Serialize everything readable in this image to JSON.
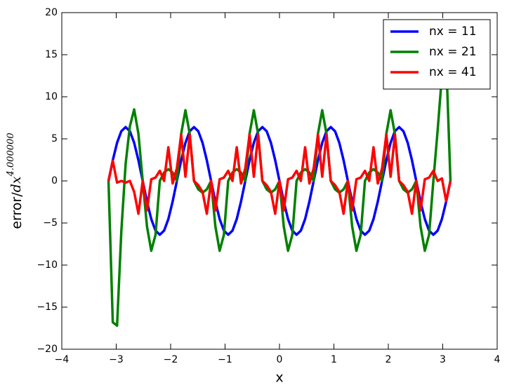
{
  "chart_data": {
    "type": "line",
    "xlabel": "x",
    "ylabel": "error/",
    "ylabel_var": "dx",
    "ylabel_exponent": "4.000000",
    "x": [
      -3.1416,
      -3.0631,
      -2.9845,
      -2.906,
      -2.8274,
      -2.7489,
      -2.6704,
      -2.5918,
      -2.5133,
      -2.4347,
      -2.3562,
      -2.2777,
      -2.1991,
      -2.1206,
      -2.042,
      -1.9635,
      -1.885,
      -1.8064,
      -1.7279,
      -1.6493,
      -1.5708,
      -1.4923,
      -1.4137,
      -1.3352,
      -1.2566,
      -1.1781,
      -1.0996,
      -1.021,
      -0.9425,
      -0.8639,
      -0.7854,
      -0.7069,
      -0.6283,
      -0.5498,
      -0.4712,
      -0.3927,
      -0.3142,
      -0.2356,
      -0.1571,
      -0.0785,
      0,
      0.0785,
      0.1571,
      0.2356,
      0.3142,
      0.3927,
      0.4712,
      0.5498,
      0.6283,
      0.7069,
      0.7854,
      0.8639,
      0.9425,
      1.021,
      1.0996,
      1.1781,
      1.2566,
      1.3352,
      1.4137,
      1.4923,
      1.5708,
      1.6493,
      1.7279,
      1.8064,
      1.885,
      1.9635,
      2.042,
      2.1206,
      2.1991,
      2.2777,
      2.3562,
      2.4347,
      2.5133,
      2.5918,
      2.6704,
      2.7489,
      2.8274,
      2.906,
      2.9845,
      3.0631,
      3.1416
    ],
    "series": [
      {
        "name": "nx = 11",
        "color": "#0000ff",
        "values": [
          0,
          2.45,
          4.53,
          5.91,
          6.4,
          5.91,
          4.53,
          2.45,
          0,
          -2.45,
          -4.53,
          -5.91,
          -6.4,
          -5.91,
          -4.53,
          -2.45,
          0,
          2.45,
          4.53,
          5.91,
          6.4,
          5.91,
          4.53,
          2.45,
          0,
          -2.45,
          -4.53,
          -5.91,
          -6.4,
          -5.91,
          -4.53,
          -2.45,
          0,
          2.45,
          4.53,
          5.91,
          6.4,
          5.91,
          4.53,
          2.45,
          0,
          -2.45,
          -4.53,
          -5.91,
          -6.4,
          -5.91,
          -4.53,
          -2.45,
          0,
          2.45,
          4.53,
          5.91,
          6.4,
          5.91,
          4.53,
          2.45,
          0,
          -2.45,
          -4.53,
          -5.91,
          -6.4,
          -5.91,
          -4.53,
          -2.45,
          0,
          2.45,
          4.53,
          5.91,
          6.4,
          5.91,
          4.53,
          2.45,
          0,
          -2.45,
          -4.53,
          -5.91,
          -6.4,
          -5.91,
          -4.53,
          -2.45,
          0
        ]
      },
      {
        "name": "nx = 21",
        "color": "#008000",
        "values": [
          0,
          -16.8,
          -17.2,
          -6,
          2,
          6.5,
          8.5,
          5.6,
          0,
          -5.4,
          -8.3,
          -6.4,
          0,
          1.0,
          1.4,
          1.0,
          0,
          5.6,
          8.4,
          5.6,
          0,
          -1.0,
          -1.4,
          -1.0,
          0,
          -5.4,
          -8.3,
          -6.4,
          0,
          1.0,
          1.4,
          1.0,
          0,
          5.6,
          8.4,
          5.6,
          0,
          -1.0,
          -1.4,
          -1.0,
          0,
          -5.4,
          -8.3,
          -6.4,
          0,
          1.0,
          1.4,
          1.0,
          0,
          5.6,
          8.4,
          5.6,
          0,
          -1.0,
          -1.4,
          -1.0,
          0,
          -5.4,
          -8.3,
          -6.4,
          0,
          1.0,
          1.4,
          1.0,
          0,
          5.6,
          8.4,
          5.6,
          0,
          -1.0,
          -1.4,
          -1.0,
          0,
          -5.4,
          -8.3,
          -6.4,
          0,
          6.0,
          12.5,
          14.5,
          0
        ]
      },
      {
        "name": "nx = 41",
        "color": "#ff0000",
        "values": [
          0,
          2.4,
          -0.2,
          0,
          -0.2,
          0,
          -1.3,
          -3.9,
          0,
          -3.5,
          0.2,
          0.4,
          1.2,
          0,
          4.0,
          -0.3,
          1.5,
          5.5,
          0.5,
          5.5,
          0,
          -0.5,
          -1.3,
          -3.9,
          0,
          -3.5,
          0.2,
          0.4,
          1.2,
          0,
          4.0,
          -0.3,
          1.5,
          5.5,
          0.5,
          5.5,
          0,
          -0.5,
          -1.3,
          -3.9,
          0,
          -3.5,
          0.2,
          0.4,
          1.2,
          0,
          4.0,
          -0.3,
          1.5,
          5.5,
          0.5,
          5.5,
          0,
          -0.5,
          -1.3,
          -3.9,
          0,
          -3.5,
          0.2,
          0.4,
          1.2,
          0,
          4.0,
          -0.3,
          1.5,
          5.5,
          0.5,
          5.5,
          0,
          -0.5,
          -1.3,
          -3.9,
          0,
          -3.5,
          0.2,
          0.4,
          1.2,
          0,
          0.3,
          -2.4,
          0
        ]
      }
    ],
    "xlim": [
      -4,
      4
    ],
    "ylim": [
      -20,
      20
    ],
    "xticks": [
      {
        "value": -4,
        "label": "−4"
      },
      {
        "value": -3,
        "label": "−3"
      },
      {
        "value": -2,
        "label": "−2"
      },
      {
        "value": -1,
        "label": "−1"
      },
      0,
      1,
      2,
      3,
      4
    ],
    "yticks": [
      {
        "value": -20,
        "label": "−20"
      },
      {
        "value": -15,
        "label": "−15"
      },
      {
        "value": -10,
        "label": "−10"
      },
      {
        "value": -5,
        "label": "−5"
      },
      0,
      5,
      10,
      15,
      20
    ],
    "legend": "upper right",
    "grid": false
  }
}
